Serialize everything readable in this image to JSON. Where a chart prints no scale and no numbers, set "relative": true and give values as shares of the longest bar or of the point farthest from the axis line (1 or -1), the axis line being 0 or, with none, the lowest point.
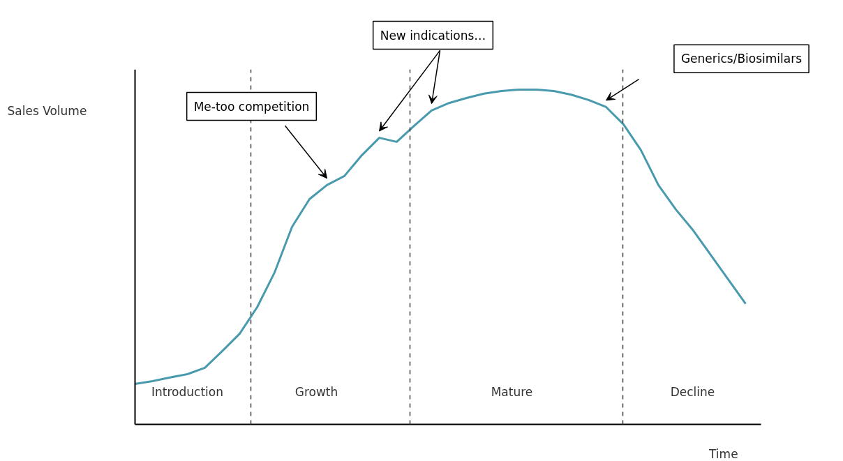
{
  "chart_data": {
    "type": "line",
    "relative": true,
    "xlabel": "Time",
    "ylabel": "Sales Volume",
    "tick_labels": false,
    "grid": false,
    "line_style": "solid",
    "marker": "none",
    "categories": [
      null,
      null,
      null,
      null,
      null,
      null,
      null,
      null,
      null,
      null,
      null,
      null,
      null,
      null,
      null,
      null,
      null,
      null,
      null,
      null,
      null,
      null,
      null,
      null,
      null,
      null,
      null,
      null,
      null,
      null,
      null,
      null,
      null,
      null,
      null,
      null
    ],
    "series": [
      {
        "color": "#4a9aae",
        "values": [
          0.121,
          0.129,
          0.14,
          0.15,
          0.169,
          0.219,
          0.271,
          0.35,
          0.454,
          0.59,
          0.673,
          0.715,
          0.742,
          0.804,
          0.856,
          0.844,
          0.892,
          0.938,
          0.96,
          0.975,
          0.988,
          0.996,
          1.0,
          1.0,
          0.996,
          0.985,
          0.969,
          0.948,
          0.896,
          0.819,
          0.715,
          0.642,
          0.579,
          0.506,
          0.433,
          0.36
        ]
      }
    ],
    "annotations": [
      "Me-too competition",
      "New indications…",
      "Generics/Biosimilars",
      "Introduction",
      "Growth",
      "Mature",
      "Decline"
    ]
  }
}
